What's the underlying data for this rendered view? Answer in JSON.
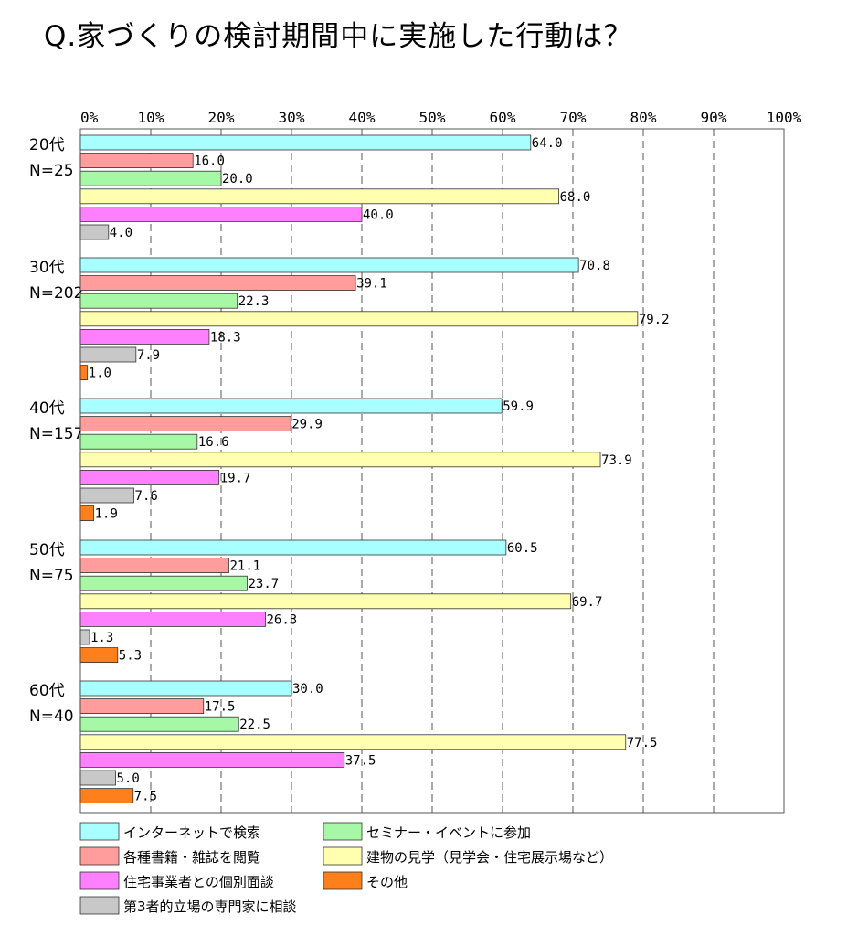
{
  "chart_data": {
    "type": "bar",
    "orientation": "horizontal",
    "title": "Q.家づくりの検討期間中に実施した行動は？",
    "xlim": [
      0,
      100
    ],
    "ticks": [
      "0%",
      "10%",
      "20%",
      "30%",
      "40%",
      "50%",
      "60%",
      "70%",
      "80%",
      "90%",
      "100%"
    ],
    "grid": "vertical dashed",
    "legend_position": "bottom",
    "series": [
      {
        "name": "インターネットで検索",
        "color": "#a8ffff"
      },
      {
        "name": "各種書籍・雑誌を閲覧",
        "color": "#ff9c9c"
      },
      {
        "name": "セミナー・イベントに参加",
        "color": "#a6f7a6"
      },
      {
        "name": "建物の見学（見学会・住宅展示場など）",
        "color": "#ffffaf"
      },
      {
        "name": "住宅事業者との個別面談",
        "color": "#ff80ff"
      },
      {
        "name": "第3者的立場の専門家に相談",
        "color": "#c8c8c8"
      },
      {
        "name": "その他",
        "color": "#ff7f1c"
      }
    ],
    "groups": [
      {
        "label1": "20代",
        "label2": "N=25",
        "values": [
          64.0,
          16.0,
          20.0,
          68.0,
          40.0,
          4.0,
          null
        ],
        "labels": [
          "64.0",
          "16.0",
          "20.0",
          "68.0",
          "40.0",
          "4.0",
          ""
        ]
      },
      {
        "label1": "30代",
        "label2": "N=202",
        "values": [
          70.8,
          39.1,
          22.3,
          79.2,
          18.3,
          7.9,
          1.0
        ],
        "labels": [
          "70.8",
          "39.1",
          "22.3",
          "79.2",
          "18.3",
          "7.9",
          "1.0"
        ]
      },
      {
        "label1": "40代",
        "label2": "N=157",
        "values": [
          59.9,
          29.9,
          16.6,
          73.9,
          19.7,
          7.6,
          1.9
        ],
        "labels": [
          "59.9",
          "29.9",
          "16.6",
          "73.9",
          "19.7",
          "7.6",
          "1.9"
        ]
      },
      {
        "label1": "50代",
        "label2": "N=75",
        "values": [
          60.5,
          21.1,
          23.7,
          69.7,
          26.3,
          1.3,
          5.3
        ],
        "labels": [
          "60.5",
          "21.1",
          "23.7",
          "69.7",
          "26.3",
          "1.3",
          "5.3"
        ]
      },
      {
        "label1": "60代",
        "label2": "N=40",
        "values": [
          30.0,
          17.5,
          22.5,
          77.5,
          37.5,
          5.0,
          7.5
        ],
        "labels": [
          "30.0",
          "17.5",
          "22.5",
          "77.5",
          "37.5",
          "5.0",
          "7.5"
        ]
      }
    ]
  }
}
